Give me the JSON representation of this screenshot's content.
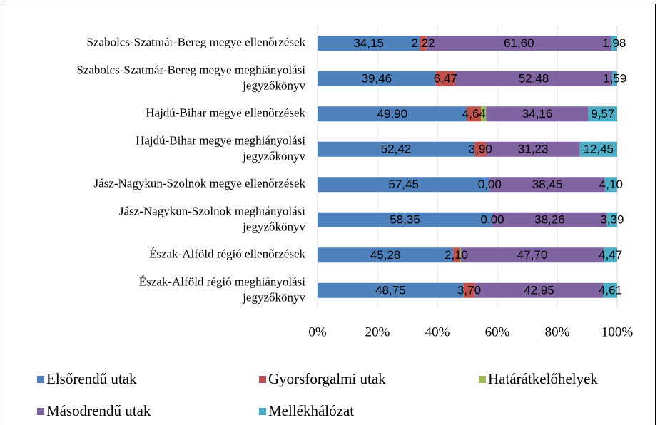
{
  "chart_data": {
    "type": "stacked-bar-horizontal",
    "categories": [
      "Szabolcs-Szatmár-Bereg megye ellenőrzések",
      "Szabolcs-Szatmár-Bereg megye meghiányolási jegyzőkönyv",
      "Hajdú-Bihar megye ellenőrzések",
      "Hajdú-Bihar megye meghiányolási jegyzőkönyv",
      "Jász-Nagykun-Szolnok megye ellenőrzések",
      "Jász-Nagykun-Szolnok meghiányolási jegyzőkönyv",
      "Észak-Alföld régió ellenőrzések",
      "Észak-Alföld régió meghiányolási jegyzőkönyv"
    ],
    "series": [
      {
        "name": "Elsőrendű utak",
        "color": "#4f81bd",
        "values": [
          34.15,
          39.46,
          49.9,
          52.42,
          57.45,
          58.35,
          45.28,
          48.75
        ],
        "value_labels": [
          "34,15",
          "39,46",
          "49,90",
          "52,42",
          "57,45",
          "58,35",
          "45,28",
          "48,75"
        ]
      },
      {
        "name": "Gyorsforgalmi utak",
        "color": "#c0504d",
        "values": [
          2.22,
          6.47,
          4.64,
          3.9,
          0,
          0,
          2.1,
          3.7
        ],
        "value_labels": [
          "2,22",
          "6,47",
          "4,64",
          "3,90",
          "0,00",
          "0,00",
          "2,10",
          "3,70"
        ]
      },
      {
        "name": "Határátkelőhelyek",
        "color": "#9bbb59",
        "values": [
          0.05,
          0,
          1.73,
          0,
          0,
          0,
          0.45,
          0
        ]
      },
      {
        "name": "Másodrendű utak",
        "color": "#8064a2",
        "values": [
          61.6,
          52.48,
          34.16,
          31.23,
          38.45,
          38.26,
          47.7,
          42.95
        ],
        "value_labels": [
          "61,60",
          "52,48",
          "34,16",
          "31,23",
          "38,45",
          "38,26",
          "47,70",
          "42,95"
        ]
      },
      {
        "name": "Mellékhálózat",
        "color": "#4bacc6",
        "values": [
          1.98,
          1.59,
          9.57,
          12.45,
          4.1,
          3.39,
          4.47,
          4.61
        ],
        "value_labels": [
          "1,98",
          "1,59",
          "9,57",
          "12,45",
          "4,10",
          "3,39",
          "4,47",
          "4,61"
        ]
      }
    ],
    "xlim": [
      0,
      100
    ],
    "xticks": [
      {
        "value": 0,
        "label": "0%"
      },
      {
        "value": 20,
        "label": "20%"
      },
      {
        "value": 40,
        "label": "40%"
      },
      {
        "value": 60,
        "label": "60%"
      },
      {
        "value": 80,
        "label": "80%"
      },
      {
        "value": 100,
        "label": "100%"
      }
    ],
    "grid": true,
    "legend": "bottom"
  }
}
